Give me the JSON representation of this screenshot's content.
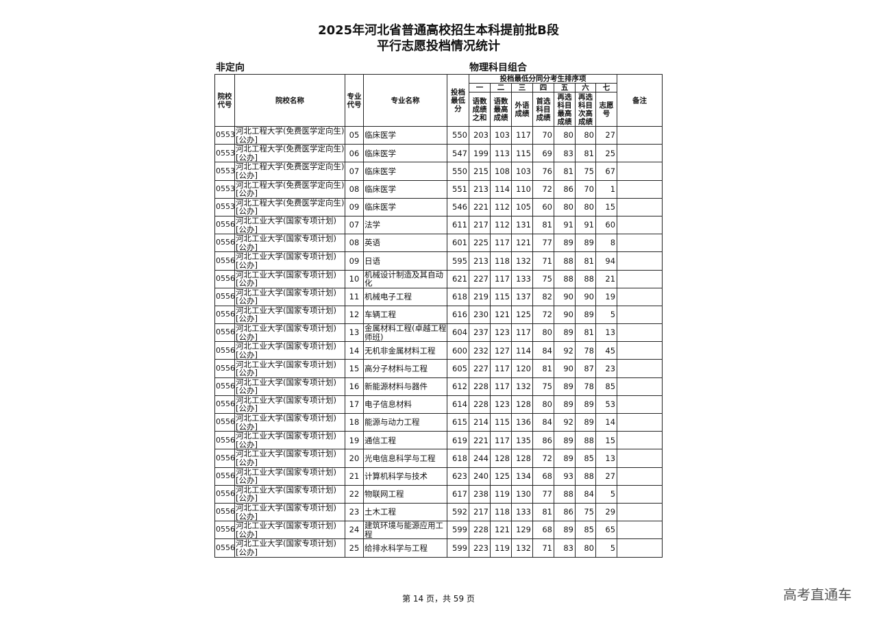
{
  "title_line1": "2025年河北省普通高校招生本科提前批B段",
  "title_line2": "平行志愿投档情况统计",
  "subtitle_left": "非定向",
  "subtitle_right": "物理科目组合",
  "headers": {
    "school_code": "院校代号",
    "school_name": "院校名称",
    "major_code": "专业代号",
    "major_name": "专业名称",
    "min_score": "投档最低分",
    "tiebreak_group": "投档最低分同分考生排序项",
    "order": [
      "一",
      "二",
      "三",
      "四",
      "五",
      "六",
      "七"
    ],
    "items": [
      "语数成绩之和",
      "语数最高成绩",
      "外语成绩",
      "首选科目成绩",
      "再选科目最高成绩",
      "再选科目次高成绩",
      "志愿号"
    ],
    "remarks": "备注"
  },
  "rows": [
    [
      "0553",
      "河北工程大学(免费医学定向生)[公办]",
      "05",
      "临床医学",
      "550",
      "203",
      "103",
      "117",
      "70",
      "80",
      "80",
      "27",
      ""
    ],
    [
      "0553",
      "河北工程大学(免费医学定向生)[公办]",
      "06",
      "临床医学",
      "547",
      "199",
      "113",
      "115",
      "69",
      "83",
      "81",
      "25",
      ""
    ],
    [
      "0553",
      "河北工程大学(免费医学定向生)[公办]",
      "07",
      "临床医学",
      "550",
      "215",
      "108",
      "103",
      "76",
      "81",
      "75",
      "67",
      ""
    ],
    [
      "0553",
      "河北工程大学(免费医学定向生)[公办]",
      "08",
      "临床医学",
      "551",
      "213",
      "114",
      "110",
      "72",
      "86",
      "70",
      "1",
      ""
    ],
    [
      "0553",
      "河北工程大学(免费医学定向生)[公办]",
      "09",
      "临床医学",
      "546",
      "221",
      "112",
      "105",
      "60",
      "80",
      "80",
      "15",
      ""
    ],
    [
      "0556",
      "河北工业大学(国家专项计划)[公办]",
      "07",
      "法学",
      "611",
      "217",
      "112",
      "131",
      "81",
      "91",
      "91",
      "60",
      ""
    ],
    [
      "0556",
      "河北工业大学(国家专项计划)[公办]",
      "08",
      "英语",
      "601",
      "225",
      "117",
      "121",
      "77",
      "89",
      "89",
      "8",
      ""
    ],
    [
      "0556",
      "河北工业大学(国家专项计划)[公办]",
      "09",
      "日语",
      "595",
      "213",
      "118",
      "132",
      "71",
      "88",
      "81",
      "94",
      ""
    ],
    [
      "0556",
      "河北工业大学(国家专项计划)[公办]",
      "10",
      "机械设计制造及其自动化",
      "621",
      "227",
      "117",
      "133",
      "75",
      "88",
      "88",
      "21",
      ""
    ],
    [
      "0556",
      "河北工业大学(国家专项计划)[公办]",
      "11",
      "机械电子工程",
      "618",
      "219",
      "115",
      "137",
      "82",
      "90",
      "90",
      "19",
      ""
    ],
    [
      "0556",
      "河北工业大学(国家专项计划)[公办]",
      "12",
      "车辆工程",
      "616",
      "230",
      "121",
      "125",
      "72",
      "90",
      "89",
      "5",
      ""
    ],
    [
      "0556",
      "河北工业大学(国家专项计划)[公办]",
      "13",
      "金属材料工程(卓越工程师班)",
      "604",
      "237",
      "123",
      "117",
      "80",
      "89",
      "81",
      "13",
      ""
    ],
    [
      "0556",
      "河北工业大学(国家专项计划)[公办]",
      "14",
      "无机非金属材料工程",
      "600",
      "232",
      "127",
      "114",
      "84",
      "92",
      "78",
      "45",
      ""
    ],
    [
      "0556",
      "河北工业大学(国家专项计划)[公办]",
      "15",
      "高分子材料与工程",
      "605",
      "227",
      "117",
      "120",
      "81",
      "90",
      "87",
      "23",
      ""
    ],
    [
      "0556",
      "河北工业大学(国家专项计划)[公办]",
      "16",
      "新能源材料与器件",
      "612",
      "228",
      "117",
      "132",
      "75",
      "89",
      "78",
      "85",
      ""
    ],
    [
      "0556",
      "河北工业大学(国家专项计划)[公办]",
      "17",
      "电子信息材料",
      "614",
      "228",
      "123",
      "128",
      "80",
      "89",
      "89",
      "53",
      ""
    ],
    [
      "0556",
      "河北工业大学(国家专项计划)[公办]",
      "18",
      "能源与动力工程",
      "615",
      "214",
      "115",
      "136",
      "84",
      "92",
      "89",
      "14",
      ""
    ],
    [
      "0556",
      "河北工业大学(国家专项计划)[公办]",
      "19",
      "通信工程",
      "619",
      "221",
      "117",
      "135",
      "86",
      "89",
      "88",
      "15",
      ""
    ],
    [
      "0556",
      "河北工业大学(国家专项计划)[公办]",
      "20",
      "光电信息科学与工程",
      "618",
      "244",
      "128",
      "128",
      "72",
      "89",
      "85",
      "13",
      ""
    ],
    [
      "0556",
      "河北工业大学(国家专项计划)[公办]",
      "21",
      "计算机科学与技术",
      "623",
      "240",
      "125",
      "134",
      "68",
      "93",
      "88",
      "27",
      ""
    ],
    [
      "0556",
      "河北工业大学(国家专项计划)[公办]",
      "22",
      "物联网工程",
      "617",
      "238",
      "119",
      "130",
      "77",
      "88",
      "84",
      "5",
      ""
    ],
    [
      "0556",
      "河北工业大学(国家专项计划)[公办]",
      "23",
      "土木工程",
      "592",
      "217",
      "118",
      "133",
      "81",
      "86",
      "75",
      "29",
      ""
    ],
    [
      "0556",
      "河北工业大学(国家专项计划)[公办]",
      "24",
      "建筑环境与能源应用工程",
      "599",
      "228",
      "121",
      "129",
      "68",
      "89",
      "85",
      "65",
      ""
    ],
    [
      "0556",
      "河北工业大学(国家专项计划)[公办]",
      "25",
      "给排水科学与工程",
      "599",
      "223",
      "119",
      "132",
      "71",
      "83",
      "80",
      "5",
      ""
    ]
  ],
  "footer": "第 14 页，共 59 页",
  "watermark": "高考直通车"
}
